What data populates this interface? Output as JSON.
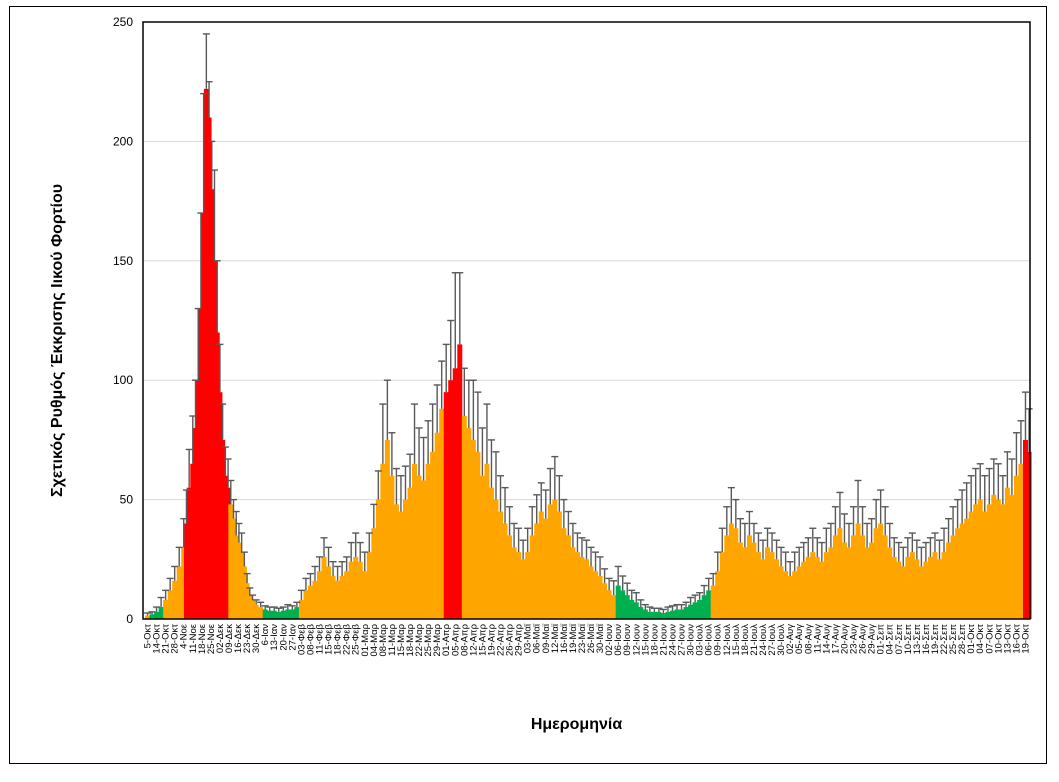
{
  "chart_data": {
    "type": "bar",
    "title": "",
    "xlabel": "Ημερομηνία",
    "ylabel": "Σχετικός Ρυθμός Έκκρισης Ιικού Φορτίου",
    "ylim": [
      0,
      250
    ],
    "yticks": [
      0,
      50,
      100,
      150,
      200,
      250
    ],
    "grid": true,
    "colors": {
      "low": "#00b050",
      "medium": "#ffa500",
      "high": "#ff0000",
      "error": "#595959"
    },
    "tick_labels": [
      "5-Οκτ",
      "14-Οκτ",
      "21-Οκτ",
      "28-Οκτ",
      "4-Νοε",
      "11-Νοε",
      "18-Νοε",
      "25-Νοε",
      "02-Δεκ",
      "09-Δεκ",
      "16-Δεκ",
      "23-Δεκ",
      "30-Δεκ",
      "6-Ιαν",
      "13-Ιαν",
      "20-Ιαν",
      "27-Ιαν",
      "03-Φεβ",
      "08-Φεβ",
      "11-Φεβ",
      "15-Φεβ",
      "18-Φεβ",
      "22-Φεβ",
      "25-Φεβ",
      "01-Μαρ",
      "04-Μαρ",
      "08-Μαρ",
      "11-Μαρ",
      "15-Μαρ",
      "18-Μαρ",
      "22-Μαρ",
      "25-Μαρ",
      "29-Μαρ",
      "01-Απρ",
      "05-Απρ",
      "08-Απρ",
      "12-Απρ",
      "15-Απρ",
      "19-Απρ",
      "22-Απρ",
      "26-Απρ",
      "29-Απρ",
      "03-Μαϊ",
      "06-Μαϊ",
      "09-Μαϊ",
      "12-Μαϊ",
      "16-Μαϊ",
      "19-Μαϊ",
      "23-Μαϊ",
      "26-Μαϊ",
      "30-Μαϊ",
      "02-Ιουν",
      "06-Ιουν",
      "09-Ιουν",
      "12-Ιουν",
      "15-Ιουν",
      "18-Ιουν",
      "21-Ιουν",
      "24-Ιουν",
      "27-Ιουν",
      "30-Ιουν",
      "03-Ιουλ",
      "06-Ιουλ",
      "09-Ιουλ",
      "12-Ιουλ",
      "15-Ιουλ",
      "18-Ιουλ",
      "21-Ιουλ",
      "24-Ιουλ",
      "27-Ιουλ",
      "30-Ιουλ",
      "02-Αυγ",
      "05-Αυγ",
      "08-Αυγ",
      "11-Αυγ",
      "14-Αυγ",
      "17-Αυγ",
      "20-Αυγ",
      "23-Αυγ",
      "26-Αυγ",
      "29-Αυγ",
      "01-Σεπ",
      "04-Σεπ",
      "07-Σεπ",
      "10-Σεπ",
      "13-Σεπ",
      "16-Σεπ",
      "19-Σεπ",
      "22-Σεπ",
      "25-Σεπ",
      "28-Σεπ",
      "01-Οκτ",
      "04-Οκτ",
      "07-Οκτ",
      "10-Οκτ",
      "13-Οκτ",
      "16-Οκτ",
      "19-Οκτ"
    ],
    "points": [
      [
        0,
        1.5,
        1,
        "o"
      ],
      [
        0.5,
        2,
        1,
        "g"
      ],
      [
        1,
        3,
        2,
        "g"
      ],
      [
        1.5,
        5,
        4,
        "g"
      ],
      [
        2,
        8,
        4,
        "o"
      ],
      [
        2.5,
        12,
        5,
        "o"
      ],
      [
        3,
        16,
        6,
        "o"
      ],
      [
        3.5,
        22,
        8,
        "o"
      ],
      [
        4,
        30,
        12,
        "o"
      ],
      [
        4.3,
        40,
        14,
        "r"
      ],
      [
        4.6,
        55,
        16,
        "r"
      ],
      [
        5,
        65,
        20,
        "r"
      ],
      [
        5.3,
        80,
        20,
        "r"
      ],
      [
        5.6,
        100,
        30,
        "r"
      ],
      [
        5.9,
        130,
        40,
        "r"
      ],
      [
        6.2,
        170,
        50,
        "r"
      ],
      [
        6.5,
        222,
        23,
        "r"
      ],
      [
        6.8,
        210,
        15,
        "r"
      ],
      [
        7.1,
        180,
        20,
        "r"
      ],
      [
        7.4,
        150,
        38,
        "r"
      ],
      [
        7.7,
        120,
        30,
        "r"
      ],
      [
        8,
        95,
        20,
        "r"
      ],
      [
        8.3,
        75,
        15,
        "r"
      ],
      [
        8.6,
        60,
        12,
        "r"
      ],
      [
        8.9,
        55,
        12,
        "r"
      ],
      [
        9.2,
        48,
        10,
        "o"
      ],
      [
        9.5,
        42,
        8,
        "o"
      ],
      [
        9.8,
        35,
        10,
        "o"
      ],
      [
        10.1,
        32,
        8,
        "o"
      ],
      [
        10.4,
        28,
        8,
        "o"
      ],
      [
        10.7,
        22,
        6,
        "o"
      ],
      [
        11,
        15,
        4,
        "o"
      ],
      [
        11.3,
        10,
        3,
        "o"
      ],
      [
        11.6,
        8,
        2,
        "o"
      ],
      [
        12,
        6,
        2,
        "o"
      ],
      [
        12.5,
        5,
        2,
        "o"
      ],
      [
        13,
        4,
        1.5,
        "g"
      ],
      [
        13.5,
        3.5,
        1.5,
        "g"
      ],
      [
        14,
        3.5,
        1.5,
        "g"
      ],
      [
        14.5,
        3,
        1.5,
        "g"
      ],
      [
        15,
        3.5,
        1.5,
        "g"
      ],
      [
        15.5,
        4,
        2,
        "g"
      ],
      [
        16,
        4,
        1.5,
        "g"
      ],
      [
        16.5,
        5,
        2,
        "g"
      ],
      [
        17,
        8,
        4,
        "o"
      ],
      [
        17.5,
        12,
        5,
        "o"
      ],
      [
        18,
        14,
        5,
        "o"
      ],
      [
        18.5,
        16,
        6,
        "o"
      ],
      [
        19,
        20,
        6,
        "o"
      ],
      [
        19.5,
        26,
        8,
        "o"
      ],
      [
        20,
        22,
        8,
        "o"
      ],
      [
        20.5,
        18,
        6,
        "o"
      ],
      [
        21,
        16,
        6,
        "o"
      ],
      [
        21.5,
        18,
        6,
        "o"
      ],
      [
        22,
        20,
        6,
        "o"
      ],
      [
        22.5,
        24,
        8,
        "o"
      ],
      [
        23,
        26,
        10,
        "o"
      ],
      [
        23.5,
        24,
        8,
        "o"
      ],
      [
        24,
        20,
        8,
        "o"
      ],
      [
        24.5,
        28,
        8,
        "o"
      ],
      [
        25,
        38,
        10,
        "o"
      ],
      [
        25.5,
        50,
        12,
        "o"
      ],
      [
        26,
        65,
        25,
        "o"
      ],
      [
        26.5,
        75,
        25,
        "o"
      ],
      [
        27,
        60,
        18,
        "o"
      ],
      [
        27.5,
        48,
        15,
        "o"
      ],
      [
        28,
        45,
        15,
        "o"
      ],
      [
        28.5,
        50,
        14,
        "o"
      ],
      [
        29,
        55,
        14,
        "o"
      ],
      [
        29.5,
        65,
        25,
        "o"
      ],
      [
        30,
        60,
        20,
        "o"
      ],
      [
        30.5,
        58,
        18,
        "o"
      ],
      [
        31,
        65,
        18,
        "o"
      ],
      [
        31.5,
        70,
        20,
        "o"
      ],
      [
        32,
        78,
        20,
        "o"
      ],
      [
        32.5,
        88,
        20,
        "o"
      ],
      [
        33,
        95,
        20,
        "r"
      ],
      [
        33.5,
        100,
        25,
        "r"
      ],
      [
        34,
        105,
        40,
        "r"
      ],
      [
        34.5,
        115,
        30,
        "r"
      ],
      [
        35,
        85,
        20,
        "o"
      ],
      [
        35.5,
        80,
        20,
        "o"
      ],
      [
        36,
        75,
        25,
        "o"
      ],
      [
        36.5,
        70,
        25,
        "o"
      ],
      [
        37,
        60,
        20,
        "o"
      ],
      [
        37.5,
        65,
        25,
        "o"
      ],
      [
        38,
        55,
        20,
        "o"
      ],
      [
        38.5,
        50,
        20,
        "o"
      ],
      [
        39,
        45,
        15,
        "o"
      ],
      [
        39.5,
        40,
        15,
        "o"
      ],
      [
        40,
        35,
        12,
        "o"
      ],
      [
        40.5,
        30,
        10,
        "o"
      ],
      [
        41,
        28,
        10,
        "o"
      ],
      [
        41.5,
        25,
        8,
        "o"
      ],
      [
        42,
        28,
        10,
        "o"
      ],
      [
        42.5,
        35,
        12,
        "o"
      ],
      [
        43,
        40,
        12,
        "o"
      ],
      [
        43.5,
        45,
        12,
        "o"
      ],
      [
        44,
        42,
        12,
        "o"
      ],
      [
        44.5,
        48,
        15,
        "o"
      ],
      [
        45,
        50,
        18,
        "o"
      ],
      [
        45.5,
        45,
        15,
        "o"
      ],
      [
        46,
        38,
        12,
        "o"
      ],
      [
        46.5,
        35,
        10,
        "o"
      ],
      [
        47,
        30,
        10,
        "o"
      ],
      [
        47.5,
        28,
        8,
        "o"
      ],
      [
        48,
        26,
        8,
        "o"
      ],
      [
        48.5,
        25,
        8,
        "o"
      ],
      [
        49,
        22,
        8,
        "o"
      ],
      [
        49.5,
        20,
        8,
        "o"
      ],
      [
        50,
        18,
        8,
        "o"
      ],
      [
        50.5,
        15,
        6,
        "o"
      ],
      [
        51,
        12,
        5,
        "o"
      ],
      [
        51.5,
        10,
        6,
        "o"
      ],
      [
        52,
        14,
        8,
        "g"
      ],
      [
        52.5,
        12,
        6,
        "g"
      ],
      [
        53,
        10,
        5,
        "g"
      ],
      [
        53.5,
        8,
        4,
        "g"
      ],
      [
        54,
        7,
        4,
        "g"
      ],
      [
        54.5,
        5,
        3,
        "g"
      ],
      [
        55,
        4,
        2,
        "g"
      ],
      [
        55.5,
        3,
        2,
        "g"
      ],
      [
        56,
        3,
        1.5,
        "g"
      ],
      [
        56.5,
        3,
        1.5,
        "g"
      ],
      [
        57,
        2.5,
        1.5,
        "g"
      ],
      [
        57.5,
        3,
        2,
        "g"
      ],
      [
        58,
        3.5,
        2,
        "g"
      ],
      [
        58.5,
        4,
        2,
        "g"
      ],
      [
        59,
        4,
        2,
        "g"
      ],
      [
        59.5,
        5,
        2,
        "g"
      ],
      [
        60,
        6,
        3,
        "g"
      ],
      [
        60.5,
        7,
        3,
        "g"
      ],
      [
        61,
        8,
        3,
        "g"
      ],
      [
        61.5,
        10,
        4,
        "g"
      ],
      [
        62,
        12,
        5,
        "g"
      ],
      [
        62.5,
        14,
        5,
        "o"
      ],
      [
        63,
        20,
        8,
        "o"
      ],
      [
        63.5,
        28,
        10,
        "o"
      ],
      [
        64,
        35,
        12,
        "o"
      ],
      [
        64.5,
        40,
        15,
        "o"
      ],
      [
        65,
        38,
        12,
        "o"
      ],
      [
        65.5,
        32,
        10,
        "o"
      ],
      [
        66,
        30,
        10,
        "o"
      ],
      [
        66.5,
        35,
        10,
        "o"
      ],
      [
        67,
        32,
        8,
        "o"
      ],
      [
        67.5,
        28,
        8,
        "o"
      ],
      [
        68,
        25,
        8,
        "o"
      ],
      [
        68.5,
        30,
        8,
        "o"
      ],
      [
        69,
        28,
        8,
        "o"
      ],
      [
        69.5,
        25,
        8,
        "o"
      ],
      [
        70,
        22,
        8,
        "o"
      ],
      [
        70.5,
        20,
        8,
        "o"
      ],
      [
        71,
        18,
        6,
        "o"
      ],
      [
        71.5,
        20,
        8,
        "o"
      ],
      [
        72,
        22,
        8,
        "o"
      ],
      [
        72.5,
        24,
        8,
        "o"
      ],
      [
        73,
        26,
        8,
        "o"
      ],
      [
        73.5,
        28,
        10,
        "o"
      ],
      [
        74,
        26,
        8,
        "o"
      ],
      [
        74.5,
        24,
        8,
        "o"
      ],
      [
        75,
        28,
        10,
        "o"
      ],
      [
        75.5,
        30,
        10,
        "o"
      ],
      [
        76,
        35,
        12,
        "o"
      ],
      [
        76.5,
        38,
        15,
        "o"
      ],
      [
        77,
        32,
        12,
        "o"
      ],
      [
        77.5,
        30,
        10,
        "o"
      ],
      [
        78,
        35,
        12,
        "o"
      ],
      [
        78.5,
        40,
        18,
        "o"
      ],
      [
        79,
        35,
        12,
        "o"
      ],
      [
        79.5,
        30,
        10,
        "o"
      ],
      [
        80,
        32,
        10,
        "o"
      ],
      [
        80.5,
        38,
        12,
        "o"
      ],
      [
        81,
        40,
        14,
        "o"
      ],
      [
        81.5,
        35,
        12,
        "o"
      ],
      [
        82,
        30,
        10,
        "o"
      ],
      [
        82.5,
        26,
        8,
        "o"
      ],
      [
        83,
        24,
        8,
        "o"
      ],
      [
        83.5,
        22,
        8,
        "o"
      ],
      [
        84,
        26,
        8,
        "o"
      ],
      [
        84.5,
        28,
        8,
        "o"
      ],
      [
        85,
        25,
        8,
        "o"
      ],
      [
        85.5,
        22,
        8,
        "o"
      ],
      [
        86,
        24,
        8,
        "o"
      ],
      [
        86.5,
        26,
        8,
        "o"
      ],
      [
        87,
        28,
        8,
        "o"
      ],
      [
        87.5,
        25,
        8,
        "o"
      ],
      [
        88,
        28,
        10,
        "o"
      ],
      [
        88.5,
        32,
        10,
        "o"
      ],
      [
        89,
        35,
        12,
        "o"
      ],
      [
        89.5,
        38,
        12,
        "o"
      ],
      [
        90,
        40,
        14,
        "o"
      ],
      [
        90.5,
        42,
        15,
        "o"
      ],
      [
        91,
        45,
        15,
        "o"
      ],
      [
        91.5,
        48,
        15,
        "o"
      ],
      [
        92,
        50,
        15,
        "o"
      ],
      [
        92.5,
        45,
        15,
        "o"
      ],
      [
        93,
        48,
        15,
        "o"
      ],
      [
        93.5,
        52,
        15,
        "o"
      ],
      [
        94,
        50,
        15,
        "o"
      ],
      [
        94.5,
        48,
        12,
        "o"
      ],
      [
        95,
        55,
        15,
        "o"
      ],
      [
        95.5,
        52,
        15,
        "o"
      ],
      [
        96,
        60,
        18,
        "o"
      ],
      [
        96.5,
        65,
        18,
        "o"
      ],
      [
        97,
        75,
        20,
        "r"
      ],
      [
        97.4,
        70,
        18,
        "r"
      ]
    ]
  }
}
